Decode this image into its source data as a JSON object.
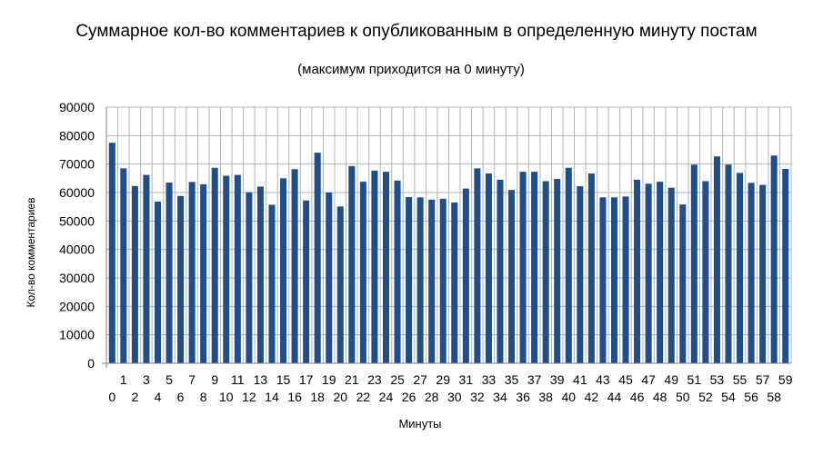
{
  "chart_data": {
    "type": "bar",
    "title": "Суммарное кол-во комментариев к опубликованным в определенную минуту постам",
    "subtitle": "(максимум приходится на 0 минуту)",
    "xlabel": "Минуты",
    "ylabel": "Кол-во комментариев",
    "categories": [
      "0",
      "1",
      "2",
      "3",
      "4",
      "5",
      "6",
      "7",
      "8",
      "9",
      "10",
      "11",
      "12",
      "13",
      "14",
      "15",
      "16",
      "17",
      "18",
      "19",
      "20",
      "21",
      "22",
      "23",
      "24",
      "25",
      "26",
      "27",
      "28",
      "29",
      "30",
      "31",
      "32",
      "33",
      "34",
      "35",
      "36",
      "37",
      "38",
      "39",
      "40",
      "41",
      "42",
      "43",
      "44",
      "45",
      "46",
      "47",
      "48",
      "49",
      "50",
      "51",
      "52",
      "53",
      "54",
      "55",
      "56",
      "57",
      "58",
      "59"
    ],
    "values": [
      77500,
      68500,
      62300,
      66200,
      56800,
      63500,
      58800,
      63700,
      62900,
      68700,
      65900,
      66200,
      60100,
      62100,
      55700,
      65000,
      68200,
      57200,
      74000,
      60000,
      55100,
      69300,
      63800,
      67700,
      67300,
      64200,
      58400,
      58300,
      57500,
      57800,
      56500,
      61400,
      68500,
      66700,
      64500,
      60900,
      67300,
      67300,
      64000,
      64800,
      68700,
      62200,
      66700,
      58300,
      58300,
      58600,
      64500,
      63100,
      63800,
      61700,
      55800,
      69800,
      64000,
      72700,
      69800,
      66900,
      63400,
      62700,
      73000,
      68300
    ],
    "ylim": [
      0,
      90000
    ],
    "yticks": [
      0,
      10000,
      20000,
      30000,
      40000,
      50000,
      60000,
      70000,
      80000,
      90000
    ],
    "grid": true,
    "legend": "none",
    "bar_color": "#1f4e8c",
    "grid_color": "#b3b3b3"
  }
}
